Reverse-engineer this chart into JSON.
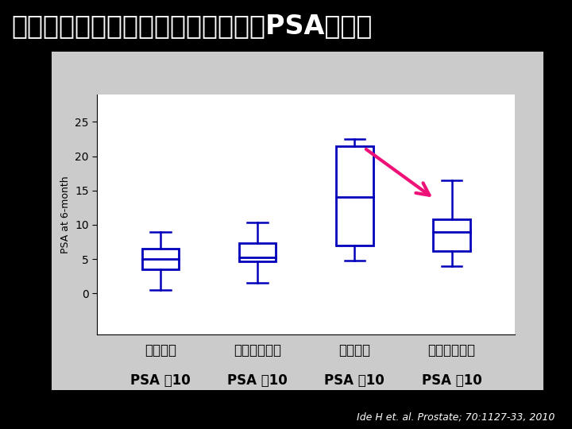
{
  "title": "クルクミン含有サプリメントによわPSAが減少",
  "ylabel": "PSA at 6-month",
  "ylim": [
    -6,
    29
  ],
  "yticks": [
    0,
    5,
    10,
    15,
    20,
    25
  ],
  "background_outer": "#000000",
  "background_plot": "#ffffff",
  "background_panel": "#cccccc",
  "box_color": "#0000bb",
  "title_color": "#ffffff",
  "citation": "Ide H et. al. Prostate; 70:1127-33, 2010",
  "cat1_line1": "プラセボ",
  "cat1_line2": "PSA ＜10",
  "cat2_line1": "サプリメント",
  "cat2_line2": "PSA ＜10",
  "cat3_line1": "プラセボ",
  "cat3_line2": "PSA ＞10",
  "cat4_line1": "サプリメント",
  "cat4_line2": "PSA ＞10",
  "boxes": [
    {
      "whislo": 0.5,
      "q1": 3.5,
      "med": 5.0,
      "q3": 6.5,
      "whishi": 9.0
    },
    {
      "whislo": 1.5,
      "q1": 4.7,
      "med": 5.3,
      "q3": 7.3,
      "whishi": 10.3
    },
    {
      "whislo": 4.8,
      "q1": 7.0,
      "med": 14.0,
      "q3": 21.5,
      "whishi": 22.5
    },
    {
      "whislo": 4.0,
      "q1": 6.2,
      "med": 9.0,
      "q3": 10.8,
      "whishi": 16.5
    }
  ],
  "arrow_color": "#ee1177",
  "line_color": "#3366ff",
  "title_fontsize": 24,
  "label_fontsize": 12,
  "ylabel_fontsize": 9,
  "citation_fontsize": 9,
  "box_width": 0.38,
  "positions": [
    1,
    2,
    3,
    4
  ],
  "xlim": [
    0.35,
    4.65
  ]
}
